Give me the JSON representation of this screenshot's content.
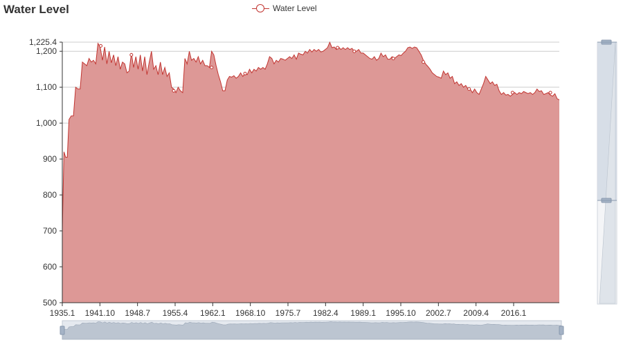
{
  "title": "Water Level",
  "legend": {
    "label": "Water Level"
  },
  "colors": {
    "series": "#c23531",
    "area": "#dd9896",
    "grid": "#cccccc",
    "zoom": "#d4dbe4"
  },
  "chart_data": {
    "type": "area",
    "title": "Water Level",
    "series": [
      {
        "name": "Water Level"
      }
    ],
    "ylim": [
      500,
      1225.4
    ],
    "xlim": [
      1935.0,
      2024.2
    ],
    "y_ticks": [
      "500",
      "600",
      "700",
      "800",
      "900",
      "1,000",
      "1,100",
      "1,200",
      "1,225.4"
    ],
    "x_ticks": [
      "1935.1",
      "1941.10",
      "1948.7",
      "1955.4",
      "1962.1",
      "1968.10",
      "1975.7",
      "1982.4",
      "1989.1",
      "1995.10",
      "2002.7",
      "2009.4",
      "2016.1"
    ],
    "grid": true,
    "legend_position": "top",
    "points": [
      [
        1935.0,
        700
      ],
      [
        1935.3,
        920
      ],
      [
        1935.6,
        905
      ],
      [
        1935.9,
        905
      ],
      [
        1936.2,
        1010
      ],
      [
        1936.6,
        1020
      ],
      [
        1937.0,
        1020
      ],
      [
        1937.4,
        1100
      ],
      [
        1937.8,
        1095
      ],
      [
        1938.2,
        1095
      ],
      [
        1938.6,
        1170
      ],
      [
        1939.0,
        1165
      ],
      [
        1939.4,
        1160
      ],
      [
        1939.8,
        1180
      ],
      [
        1940.2,
        1170
      ],
      [
        1940.6,
        1175
      ],
      [
        1941.0,
        1165
      ],
      [
        1941.4,
        1222
      ],
      [
        1941.8,
        1212
      ],
      [
        1942.2,
        1175
      ],
      [
        1942.6,
        1212
      ],
      [
        1943.0,
        1165
      ],
      [
        1943.4,
        1200
      ],
      [
        1943.8,
        1168
      ],
      [
        1944.2,
        1190
      ],
      [
        1944.6,
        1160
      ],
      [
        1945.0,
        1185
      ],
      [
        1945.4,
        1150
      ],
      [
        1945.8,
        1170
      ],
      [
        1946.2,
        1165
      ],
      [
        1946.6,
        1140
      ],
      [
        1947.0,
        1145
      ],
      [
        1947.4,
        1195
      ],
      [
        1947.8,
        1155
      ],
      [
        1948.2,
        1185
      ],
      [
        1948.6,
        1150
      ],
      [
        1949.0,
        1190
      ],
      [
        1949.4,
        1145
      ],
      [
        1949.8,
        1185
      ],
      [
        1950.2,
        1135
      ],
      [
        1950.6,
        1170
      ],
      [
        1951.0,
        1200
      ],
      [
        1951.4,
        1150
      ],
      [
        1951.8,
        1160
      ],
      [
        1952.2,
        1135
      ],
      [
        1952.6,
        1170
      ],
      [
        1953.0,
        1135
      ],
      [
        1953.4,
        1155
      ],
      [
        1953.8,
        1130
      ],
      [
        1954.2,
        1140
      ],
      [
        1954.6,
        1100
      ],
      [
        1955.0,
        1095
      ],
      [
        1955.4,
        1085
      ],
      [
        1955.8,
        1100
      ],
      [
        1956.2,
        1090
      ],
      [
        1956.6,
        1085
      ],
      [
        1957.0,
        1180
      ],
      [
        1957.4,
        1165
      ],
      [
        1957.8,
        1200
      ],
      [
        1958.2,
        1175
      ],
      [
        1958.6,
        1180
      ],
      [
        1959.0,
        1170
      ],
      [
        1959.4,
        1185
      ],
      [
        1959.8,
        1165
      ],
      [
        1960.2,
        1175
      ],
      [
        1960.6,
        1160
      ],
      [
        1961.0,
        1160
      ],
      [
        1961.4,
        1155
      ],
      [
        1961.8,
        1200
      ],
      [
        1962.2,
        1190
      ],
      [
        1962.6,
        1160
      ],
      [
        1963.0,
        1135
      ],
      [
        1963.4,
        1115
      ],
      [
        1963.8,
        1090
      ],
      [
        1964.2,
        1090
      ],
      [
        1964.6,
        1120
      ],
      [
        1965.0,
        1130
      ],
      [
        1965.4,
        1128
      ],
      [
        1965.8,
        1132
      ],
      [
        1966.2,
        1125
      ],
      [
        1966.6,
        1130
      ],
      [
        1967.0,
        1140
      ],
      [
        1967.4,
        1130
      ],
      [
        1967.8,
        1138
      ],
      [
        1968.2,
        1135
      ],
      [
        1968.6,
        1150
      ],
      [
        1969.0,
        1140
      ],
      [
        1969.4,
        1150
      ],
      [
        1969.8,
        1145
      ],
      [
        1970.2,
        1155
      ],
      [
        1970.6,
        1150
      ],
      [
        1971.0,
        1155
      ],
      [
        1971.4,
        1150
      ],
      [
        1971.8,
        1165
      ],
      [
        1972.2,
        1185
      ],
      [
        1972.6,
        1180
      ],
      [
        1973.0,
        1165
      ],
      [
        1973.4,
        1175
      ],
      [
        1973.8,
        1170
      ],
      [
        1974.2,
        1180
      ],
      [
        1974.6,
        1178
      ],
      [
        1975.0,
        1175
      ],
      [
        1975.4,
        1180
      ],
      [
        1975.8,
        1185
      ],
      [
        1976.2,
        1180
      ],
      [
        1976.6,
        1190
      ],
      [
        1977.0,
        1178
      ],
      [
        1977.4,
        1195
      ],
      [
        1977.8,
        1192
      ],
      [
        1978.2,
        1190
      ],
      [
        1978.6,
        1200
      ],
      [
        1979.0,
        1195
      ],
      [
        1979.4,
        1205
      ],
      [
        1979.8,
        1198
      ],
      [
        1980.2,
        1205
      ],
      [
        1980.6,
        1200
      ],
      [
        1981.0,
        1205
      ],
      [
        1981.4,
        1198
      ],
      [
        1981.8,
        1200
      ],
      [
        1982.2,
        1205
      ],
      [
        1982.6,
        1210
      ],
      [
        1983.0,
        1225
      ],
      [
        1983.4,
        1210
      ],
      [
        1983.8,
        1212
      ],
      [
        1984.2,
        1205
      ],
      [
        1984.6,
        1212
      ],
      [
        1985.0,
        1205
      ],
      [
        1985.4,
        1210
      ],
      [
        1985.8,
        1205
      ],
      [
        1986.2,
        1210
      ],
      [
        1986.6,
        1205
      ],
      [
        1987.0,
        1208
      ],
      [
        1987.4,
        1200
      ],
      [
        1987.8,
        1200
      ],
      [
        1988.2,
        1205
      ],
      [
        1988.6,
        1195
      ],
      [
        1989.0,
        1195
      ],
      [
        1989.4,
        1190
      ],
      [
        1989.8,
        1185
      ],
      [
        1990.2,
        1180
      ],
      [
        1990.6,
        1178
      ],
      [
        1991.0,
        1185
      ],
      [
        1991.4,
        1175
      ],
      [
        1991.8,
        1180
      ],
      [
        1992.2,
        1195
      ],
      [
        1992.6,
        1185
      ],
      [
        1993.0,
        1190
      ],
      [
        1993.4,
        1178
      ],
      [
        1993.8,
        1178
      ],
      [
        1994.2,
        1185
      ],
      [
        1994.6,
        1180
      ],
      [
        1995.0,
        1185
      ],
      [
        1995.4,
        1190
      ],
      [
        1995.8,
        1188
      ],
      [
        1996.2,
        1195
      ],
      [
        1996.6,
        1200
      ],
      [
        1997.0,
        1210
      ],
      [
        1997.4,
        1212
      ],
      [
        1997.8,
        1208
      ],
      [
        1998.2,
        1212
      ],
      [
        1998.6,
        1210
      ],
      [
        1999.0,
        1200
      ],
      [
        1999.4,
        1190
      ],
      [
        1999.8,
        1175
      ],
      [
        2000.2,
        1165
      ],
      [
        2000.6,
        1158
      ],
      [
        2001.0,
        1150
      ],
      [
        2001.4,
        1140
      ],
      [
        2001.8,
        1135
      ],
      [
        2002.2,
        1130
      ],
      [
        2002.6,
        1128
      ],
      [
        2003.0,
        1125
      ],
      [
        2003.4,
        1145
      ],
      [
        2003.8,
        1135
      ],
      [
        2004.2,
        1140
      ],
      [
        2004.6,
        1125
      ],
      [
        2005.0,
        1130
      ],
      [
        2005.4,
        1110
      ],
      [
        2005.8,
        1115
      ],
      [
        2006.2,
        1105
      ],
      [
        2006.6,
        1110
      ],
      [
        2007.0,
        1100
      ],
      [
        2007.4,
        1105
      ],
      [
        2007.8,
        1095
      ],
      [
        2008.2,
        1095
      ],
      [
        2008.6,
        1085
      ],
      [
        2009.0,
        1095
      ],
      [
        2009.4,
        1085
      ],
      [
        2009.8,
        1080
      ],
      [
        2010.2,
        1095
      ],
      [
        2010.6,
        1110
      ],
      [
        2011.0,
        1130
      ],
      [
        2011.4,
        1120
      ],
      [
        2011.8,
        1110
      ],
      [
        2012.2,
        1115
      ],
      [
        2012.6,
        1105
      ],
      [
        2013.0,
        1108
      ],
      [
        2013.4,
        1090
      ],
      [
        2013.8,
        1080
      ],
      [
        2014.2,
        1085
      ],
      [
        2014.6,
        1078
      ],
      [
        2015.0,
        1080
      ],
      [
        2015.4,
        1075
      ],
      [
        2015.8,
        1080
      ],
      [
        2016.2,
        1085
      ],
      [
        2016.6,
        1080
      ],
      [
        2017.0,
        1085
      ],
      [
        2017.4,
        1082
      ],
      [
        2017.8,
        1088
      ],
      [
        2018.2,
        1085
      ],
      [
        2018.6,
        1082
      ],
      [
        2019.0,
        1085
      ],
      [
        2019.4,
        1080
      ],
      [
        2019.8,
        1085
      ],
      [
        2020.2,
        1095
      ],
      [
        2020.6,
        1088
      ],
      [
        2021.0,
        1090
      ],
      [
        2021.4,
        1080
      ],
      [
        2021.8,
        1082
      ],
      [
        2022.2,
        1085
      ],
      [
        2022.6,
        1078
      ],
      [
        2023.0,
        1075
      ],
      [
        2023.4,
        1082
      ],
      [
        2023.8,
        1068
      ],
      [
        2024.2,
        1065
      ]
    ],
    "markers": [
      [
        1941.9,
        1215
      ],
      [
        1947.4,
        1190
      ],
      [
        1955.0,
        1090
      ],
      [
        1961.8,
        1155
      ],
      [
        1967.8,
        1138
      ],
      [
        1984.4,
        1210
      ],
      [
        1987.4,
        1200
      ],
      [
        1994.4,
        1180
      ],
      [
        1999.8,
        1170
      ],
      [
        2008.0,
        1095
      ],
      [
        2015.8,
        1085
      ],
      [
        2022.6,
        1085
      ]
    ]
  },
  "data_zoom": {
    "x": {
      "start": 0,
      "end": 100
    },
    "y": {
      "start": 0,
      "end": 100
    }
  }
}
